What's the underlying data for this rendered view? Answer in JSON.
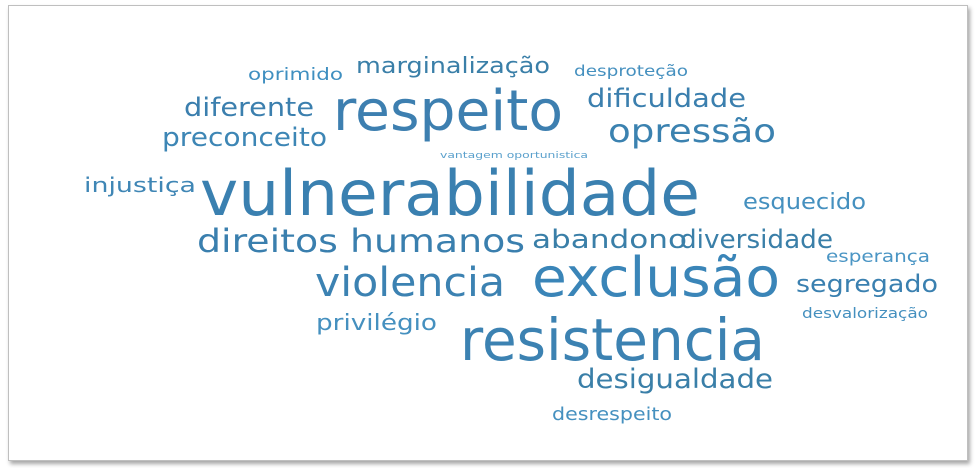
{
  "words": [
    "oprimido",
    "marginalização",
    "desproteção",
    "diferente",
    "respeito",
    "dificuldade",
    "preconceito",
    "opressão",
    "vantagem oportunistica",
    "injustiça",
    "vulnerabilidade",
    "esquecido",
    "direitos humanos",
    "abandono",
    "diversidade",
    "esperança",
    "violencia",
    "exclusão",
    "segregado",
    "privilégio",
    "desvalorização",
    "resistencia",
    "desigualdade",
    "desrespeito"
  ]
}
